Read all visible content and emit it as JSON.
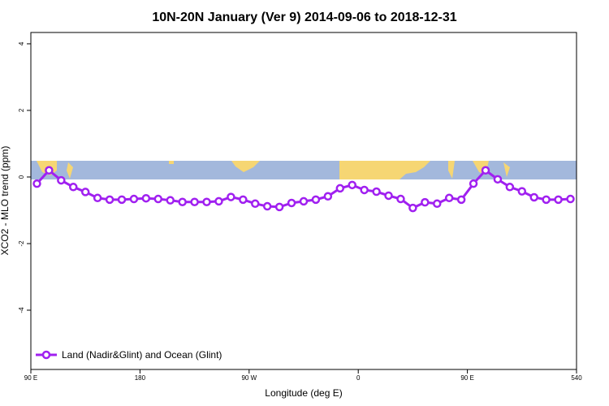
{
  "chart_data": {
    "type": "line",
    "title": "10N-20N January (Ver 9)   2014-09-06 to 2018-12-31",
    "x_label": "Longitude (deg E)",
    "y_label": "XCO2 - MLO trend (ppm)",
    "xlim": [
      90,
      540
    ],
    "ylim": [
      -5.78,
      4.34
    ],
    "xticks": [
      {
        "value": 90,
        "label": "90 E"
      },
      180,
      {
        "value": 270,
        "label": "90 W"
      },
      {
        "value": 360,
        "label": "0"
      },
      {
        "value": 450,
        "label": "90 E"
      },
      540
    ],
    "yticks": [
      4,
      2,
      0,
      -2,
      -4
    ],
    "legend": "bottom-left",
    "series": [
      {
        "name": "Land (Nadir&Glint) and Ocean (Glint)",
        "color": "#a020f0",
        "x": [
          95,
          105,
          115,
          125,
          135,
          145,
          155,
          165,
          175,
          185,
          195,
          205,
          215,
          225,
          235,
          245,
          255,
          265,
          275,
          285,
          295,
          305,
          315,
          325,
          335,
          345,
          355,
          365,
          375,
          385,
          395,
          405,
          415,
          425,
          435,
          445,
          455,
          465,
          475,
          485,
          495,
          505,
          515,
          525,
          535
        ],
        "values": [
          -0.2,
          0.2,
          -0.1,
          -0.3,
          -0.45,
          -0.63,
          -0.68,
          -0.68,
          -0.66,
          -0.64,
          -0.66,
          -0.7,
          -0.75,
          -0.75,
          -0.75,
          -0.73,
          -0.6,
          -0.68,
          -0.8,
          -0.88,
          -0.9,
          -0.78,
          -0.73,
          -0.68,
          -0.58,
          -0.34,
          -0.24,
          -0.39,
          -0.44,
          -0.56,
          -0.66,
          -0.93,
          -0.76,
          -0.8,
          -0.63,
          -0.68,
          -0.2,
          0.2,
          -0.07,
          -0.3,
          -0.43,
          -0.61,
          -0.68,
          -0.68,
          -0.66
        ]
      }
    ]
  }
}
